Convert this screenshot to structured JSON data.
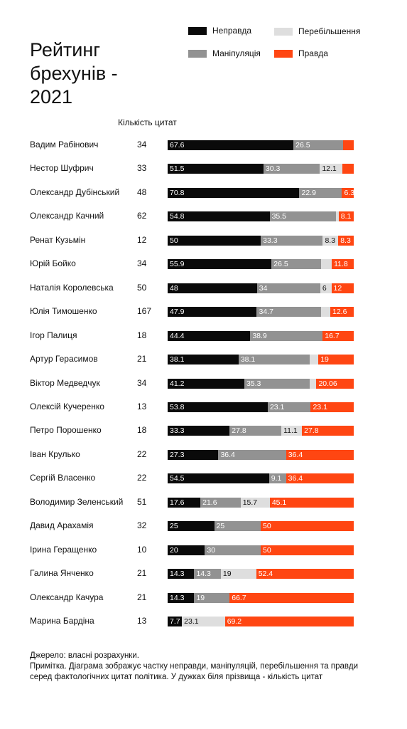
{
  "colors": {
    "falsehood": "#0a0a0a",
    "manipulation": "#929292",
    "exaggeration": "#dedede",
    "truth": "#ff4612"
  },
  "chart_data": {
    "type": "bar",
    "orientation": "horizontal",
    "stacked": true,
    "title": "Рейтинг брехунів - 2021",
    "count_header": "Кількість цитат",
    "legend": [
      {
        "key": "falsehood",
        "label": "Неправда"
      },
      {
        "key": "exaggeration",
        "label": "Перебільшення"
      },
      {
        "key": "manipulation",
        "label": "Маніпуляція"
      },
      {
        "key": "truth",
        "label": "Правда"
      }
    ],
    "xlim": [
      0,
      100
    ],
    "rows": [
      {
        "name": "Вадим Рабінович",
        "count": "34",
        "falsehood": 67.6,
        "manipulation": 26.5,
        "exaggeration": 0,
        "truth": 5.9,
        "labels": [
          "67.6",
          "26.5",
          "",
          ""
        ]
      },
      {
        "name": "Нестор Шуфрич",
        "count": "33",
        "falsehood": 51.5,
        "manipulation": 30.3,
        "exaggeration": 12.1,
        "truth": 6.1,
        "labels": [
          "51.5",
          "30.3",
          "12.1",
          ""
        ]
      },
      {
        "name": "Олександр Дубінський",
        "count": "48",
        "falsehood": 70.8,
        "manipulation": 22.9,
        "exaggeration": 0,
        "truth": 6.3,
        "labels": [
          "70.8",
          "22.9",
          "",
          "6.3"
        ]
      },
      {
        "name": "Олександр Качний",
        "count": "62",
        "falsehood": 54.8,
        "manipulation": 35.5,
        "exaggeration": 1.6,
        "truth": 8.1,
        "labels": [
          "54.8",
          "35.5",
          "",
          "8.1"
        ]
      },
      {
        "name": "Ренат Кузьмін",
        "count": "12",
        "falsehood": 50,
        "manipulation": 33.3,
        "exaggeration": 8.3,
        "truth": 8.3,
        "labels": [
          "50",
          "33.3",
          "8.3",
          "8.3"
        ]
      },
      {
        "name": "Юрій Бойко",
        "count": "34",
        "falsehood": 55.9,
        "manipulation": 26.5,
        "exaggeration": 5.9,
        "truth": 11.8,
        "labels": [
          "55.9",
          "26.5",
          "",
          "11.8"
        ]
      },
      {
        "name": "Наталія Королевська",
        "count": "50",
        "falsehood": 48,
        "manipulation": 34,
        "exaggeration": 6,
        "truth": 12,
        "labels": [
          "48",
          "34",
          "6",
          "12"
        ]
      },
      {
        "name": "Юлія Тимошенко",
        "count": "167",
        "falsehood": 47.9,
        "manipulation": 34.7,
        "exaggeration": 4.8,
        "truth": 12.6,
        "labels": [
          "47.9",
          "34.7",
          "",
          "12.6"
        ]
      },
      {
        "name": "Ігор Палиця",
        "count": "18",
        "falsehood": 44.4,
        "manipulation": 38.9,
        "exaggeration": 0,
        "truth": 16.7,
        "labels": [
          "44.4",
          "38.9",
          "",
          "16.7"
        ]
      },
      {
        "name": "Артур Герасимов",
        "count": "21",
        "falsehood": 38.1,
        "manipulation": 38.1,
        "exaggeration": 4.8,
        "truth": 19,
        "labels": [
          "38.1",
          "38.1",
          "",
          "19"
        ]
      },
      {
        "name": "Віктор Медведчук",
        "count": "34",
        "falsehood": 41.2,
        "manipulation": 35.3,
        "exaggeration": 3.44,
        "truth": 20.06,
        "labels": [
          "41.2",
          "35.3",
          "",
          "20.06"
        ]
      },
      {
        "name": "Олексій Кучеренко",
        "count": "13",
        "falsehood": 53.8,
        "manipulation": 23.1,
        "exaggeration": 0,
        "truth": 23.1,
        "labels": [
          "53.8",
          "23.1",
          "",
          "23.1"
        ]
      },
      {
        "name": "Петро Порошенко",
        "count": "18",
        "falsehood": 33.3,
        "manipulation": 27.8,
        "exaggeration": 11.1,
        "truth": 27.8,
        "labels": [
          "33.3",
          "27.8",
          "11.1",
          "27.8"
        ]
      },
      {
        "name": "Іван Крулько",
        "count": "22",
        "falsehood": 27.3,
        "manipulation": 36.4,
        "exaggeration": 0,
        "truth": 36.4,
        "labels": [
          "27.3",
          "36.4",
          "",
          "36.4"
        ]
      },
      {
        "name": "Сергій Власенко",
        "count": "22",
        "falsehood": 54.5,
        "manipulation": 9.1,
        "exaggeration": 0,
        "truth": 36.4,
        "labels": [
          "54.5",
          "9.1",
          "",
          "36.4"
        ]
      },
      {
        "name": "Володимир Зеленський",
        "count": "51",
        "falsehood": 17.6,
        "manipulation": 21.6,
        "exaggeration": 15.7,
        "truth": 45.1,
        "labels": [
          "17.6",
          "21.6",
          "15.7",
          "45.1"
        ]
      },
      {
        "name": "Давид Арахамія",
        "count": "32",
        "falsehood": 25,
        "manipulation": 25,
        "exaggeration": 0,
        "truth": 50,
        "labels": [
          "25",
          "25",
          "",
          "50"
        ]
      },
      {
        "name": "Ірина Геращенко",
        "count": "10",
        "falsehood": 20,
        "manipulation": 30,
        "exaggeration": 0,
        "truth": 50,
        "labels": [
          "20",
          "30",
          "",
          "50"
        ]
      },
      {
        "name": "Галина Янченко",
        "count": "21",
        "falsehood": 14.3,
        "manipulation": 14.3,
        "exaggeration": 19,
        "truth": 52.4,
        "labels": [
          "14.3",
          "14.3",
          "19",
          "52.4"
        ]
      },
      {
        "name": "Олександр Качура",
        "count": "21",
        "falsehood": 14.3,
        "manipulation": 19,
        "exaggeration": 0,
        "truth": 66.7,
        "labels": [
          "14.3",
          "19",
          "",
          "66.7"
        ]
      },
      {
        "name": "Марина Бардіна",
        "count": "13",
        "falsehood": 7.7,
        "manipulation": 0,
        "exaggeration": 23.1,
        "truth": 69.2,
        "labels": [
          "7.7",
          "",
          "23.1",
          "69.2"
        ]
      }
    ]
  },
  "notes": {
    "source": "Джерело: власні розрахунки.",
    "note": "Примітка. Діаграма зображує частку неправди, маніпуляцій, перебільшення та правди серед фактологічних цитат політика. У дужках біля прізвища - кількість цитат"
  }
}
